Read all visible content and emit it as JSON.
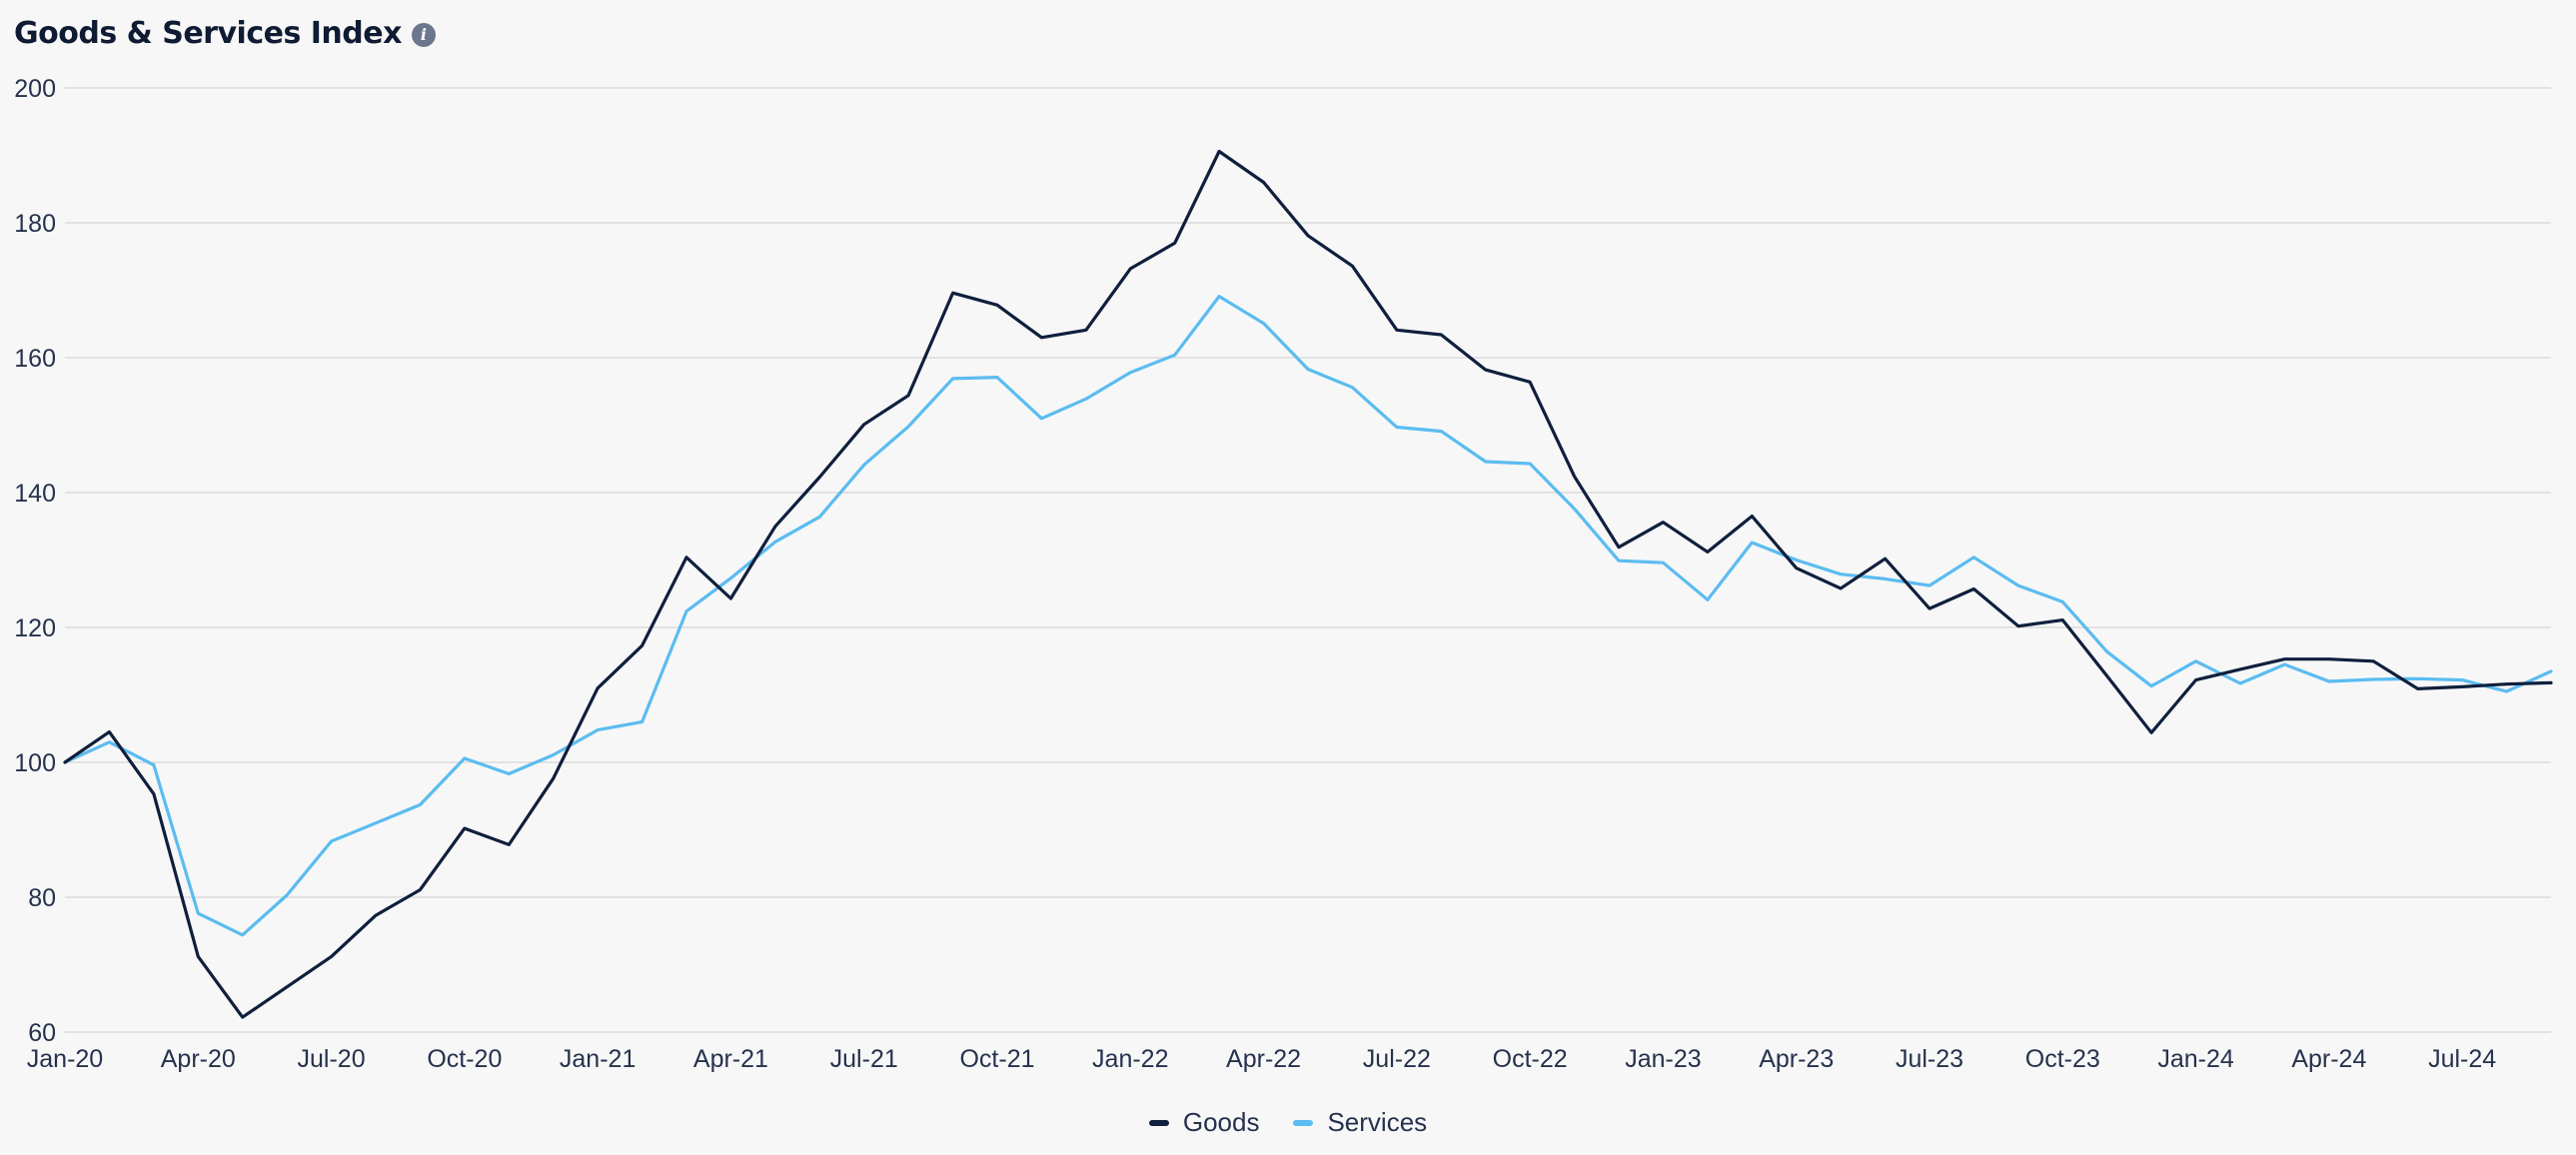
{
  "header": {
    "title": "Goods & Services Index",
    "info_icon_name": "info-icon",
    "info_icon_glyph": "i",
    "info_icon_color": "#6b778c"
  },
  "colors": {
    "background": "#f7f7f7",
    "gridline": "#dcdcdc",
    "axis_text": "#26324d",
    "goods": "#0f1f3d",
    "services": "#5bbcf0"
  },
  "legend": {
    "placement": "bottom-center",
    "goods_label": "Goods",
    "services_label": "Services"
  },
  "chart_data": {
    "type": "line",
    "title": "Goods & Services Index",
    "xlabel": "",
    "ylabel": "",
    "ylim": [
      60,
      200
    ],
    "yticks": [
      60,
      80,
      100,
      120,
      140,
      160,
      180,
      200
    ],
    "grid": true,
    "legend_position": "bottom-center",
    "x_tick_labels": [
      "Jan-20",
      "Apr-20",
      "Jul-20",
      "Oct-20",
      "Jan-21",
      "Apr-21",
      "Jul-21",
      "Oct-21",
      "Jan-22",
      "Apr-22",
      "Jul-22",
      "Oct-22",
      "Jan-23",
      "Apr-23",
      "Jul-23",
      "Oct-23",
      "Jan-24",
      "Apr-24",
      "Jul-24"
    ],
    "x": [
      "2020-01",
      "2020-02",
      "2020-03",
      "2020-04",
      "2020-05",
      "2020-06",
      "2020-07",
      "2020-08",
      "2020-09",
      "2020-10",
      "2020-11",
      "2020-12",
      "2021-01",
      "2021-02",
      "2021-03",
      "2021-04",
      "2021-05",
      "2021-06",
      "2021-07",
      "2021-08",
      "2021-09",
      "2021-10",
      "2021-11",
      "2021-12",
      "2022-01",
      "2022-02",
      "2022-03",
      "2022-04",
      "2022-05",
      "2022-06",
      "2022-07",
      "2022-08",
      "2022-09",
      "2022-10",
      "2022-11",
      "2022-12",
      "2023-01",
      "2023-02",
      "2023-03",
      "2023-04",
      "2023-05",
      "2023-06",
      "2023-07",
      "2023-08",
      "2023-09",
      "2023-10",
      "2023-11",
      "2023-12",
      "2024-01",
      "2024-02",
      "2024-03",
      "2024-04",
      "2024-05",
      "2024-06",
      "2024-07",
      "2024-08",
      "2024-09"
    ],
    "series": [
      {
        "name": "Goods",
        "values": [
          100,
          104.5,
          95.3,
          71.2,
          62.2,
          66.7,
          71.2,
          77.3,
          81.1,
          90.2,
          87.8,
          97.6,
          111.0,
          117.3,
          130.4,
          124.3,
          135.0,
          142.3,
          150.1,
          154.4,
          169.6,
          167.8,
          163.0,
          164.1,
          173.2,
          177.0,
          190.6,
          186.0,
          178.1,
          173.6,
          164.1,
          163.4,
          158.2,
          156.4,
          142.4,
          131.9,
          135.6,
          131.2,
          136.5,
          128.8,
          125.8,
          130.2,
          122.8,
          125.7,
          120.2,
          121.1,
          112.8,
          104.4,
          112.2,
          113.8,
          115.3,
          115.3,
          115.0,
          110.9,
          111.2,
          111.6,
          111.8
        ]
      },
      {
        "name": "Services",
        "values": [
          100,
          103.0,
          99.6,
          77.6,
          74.4,
          80.3,
          88.3,
          91.0,
          93.7,
          100.6,
          98.3,
          101.1,
          104.8,
          106.0,
          122.4,
          127.3,
          132.7,
          136.4,
          144.1,
          149.8,
          156.9,
          157.1,
          151.0,
          153.9,
          157.8,
          160.4,
          169.1,
          165.1,
          158.3,
          155.6,
          149.7,
          149.1,
          144.6,
          144.3,
          137.6,
          129.9,
          129.6,
          124.1,
          132.6,
          130.0,
          127.9,
          127.2,
          126.2,
          130.4,
          126.2,
          123.8,
          116.4,
          111.3,
          115.0,
          111.7,
          114.5,
          112.0,
          112.3,
          112.4,
          112.2,
          110.5,
          113.5
        ]
      }
    ]
  }
}
